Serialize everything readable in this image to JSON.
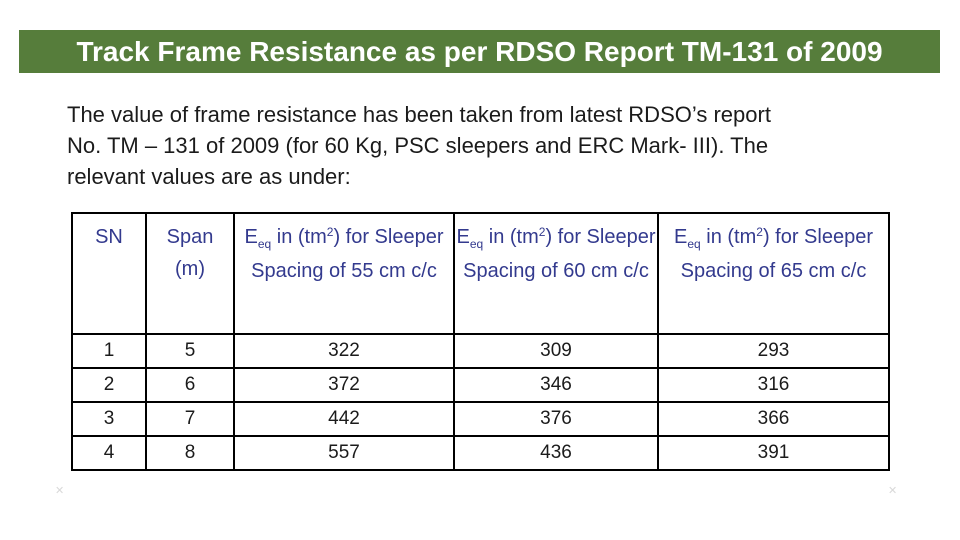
{
  "slide": {
    "title": "Track Frame Resistance as per RDSO Report TM-131 of 2009",
    "intro": "The value of frame resistance has been taken from latest RDSO’s report\nNo. TM – 131 of 2009 (for 60 Kg, PSC sleepers and ERC Mark- III). The\nrelevant values are as under:"
  },
  "colors": {
    "title_bar_bg": "#567d3b",
    "title_text": "#ffffff",
    "table_header_text": "#333a8e",
    "body_text": "#1b1b1b",
    "table_border": "#000000",
    "page_bg": "#ffffff"
  },
  "icons": {
    "crop_mark": "✕"
  },
  "table": {
    "sn_header": "SN",
    "span_header": "Span\n(m)",
    "eq_headers": [
      {
        "prefix": "E",
        "sub": "eq",
        "mid": " in (tm",
        "sup": "2",
        "suffix": ") for Sleeper Spacing of 55 cm c/c"
      },
      {
        "prefix": "E",
        "sub": "eq",
        "mid": " in (tm",
        "sup": "2",
        "suffix": ") for Sleeper Spacing of 60 cm c/c"
      },
      {
        "prefix": "E",
        "sub": "eq",
        "mid": " in (tm",
        "sup": "2",
        "suffix": ") for Sleeper Spacing of 65 cm c/c"
      }
    ],
    "rows": [
      [
        "1",
        "5",
        "322",
        "309",
        "293"
      ],
      [
        "2",
        "6",
        "372",
        "346",
        "316"
      ],
      [
        "3",
        "7",
        "442",
        "376",
        "366"
      ],
      [
        "4",
        "8",
        "557",
        "436",
        "391"
      ]
    ]
  }
}
